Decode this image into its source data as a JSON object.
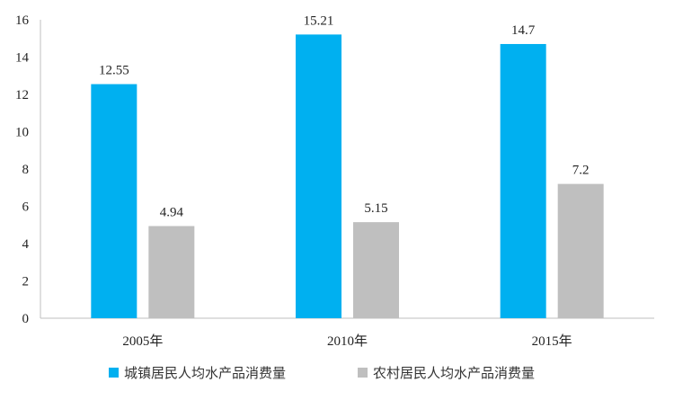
{
  "chart_data": {
    "type": "bar",
    "categories": [
      "2005年",
      "2010年",
      "2015年"
    ],
    "series": [
      {
        "name": "城镇居民人均水产品消费量",
        "values": [
          12.55,
          15.21,
          14.7
        ],
        "color": "#00B0F0"
      },
      {
        "name": "农村居民人均水产品消费量",
        "values": [
          4.94,
          5.15,
          7.2
        ],
        "color": "#BFBFBF"
      }
    ],
    "data_labels": [
      [
        "12.55",
        "15.21",
        "14.7"
      ],
      [
        "4.94",
        "5.15",
        "7.2"
      ]
    ],
    "yticks": [
      0,
      2,
      4,
      6,
      8,
      10,
      12,
      14,
      16
    ],
    "ylim": [
      0,
      16
    ],
    "grid": false,
    "legend_position": "bottom"
  }
}
